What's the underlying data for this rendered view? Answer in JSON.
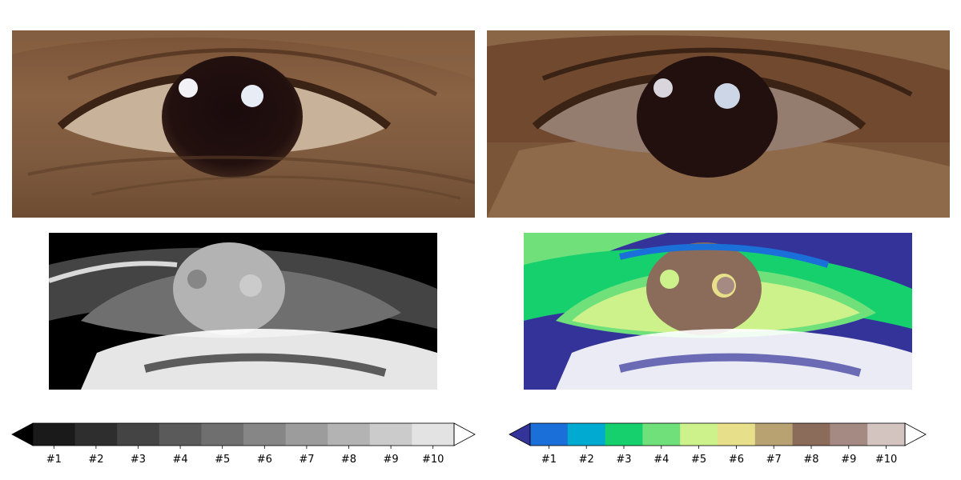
{
  "figure": {
    "panels": [
      {
        "id": "original-photo",
        "description_visible": false
      },
      {
        "id": "quantized-photo"
      },
      {
        "id": "grayscale-class-map"
      },
      {
        "id": "terrain-class-map"
      }
    ]
  },
  "colorbars": [
    {
      "id": "gray-colorbar",
      "labels": [
        "#1",
        "#2",
        "#3",
        "#4",
        "#5",
        "#6",
        "#7",
        "#8",
        "#9",
        "#10"
      ],
      "under_color": "#000000",
      "over_color": "#ffffff",
      "colors": [
        "#1a1a1a",
        "#2e2e2e",
        "#444444",
        "#5a5a5a",
        "#6f6f6f",
        "#868686",
        "#9c9c9c",
        "#b3b3b3",
        "#cbcbcb",
        "#e3e3e3"
      ]
    },
    {
      "id": "terrain-colorbar",
      "labels": [
        "#1",
        "#2",
        "#3",
        "#4",
        "#5",
        "#6",
        "#7",
        "#8",
        "#9",
        "#10"
      ],
      "under_color": "#33339a",
      "over_color": "#ffffff",
      "colors": [
        "#1a6fd8",
        "#00aad0",
        "#16d06e",
        "#6fe07a",
        "#cdf28c",
        "#e8df8a",
        "#b9a272",
        "#8b6c5a",
        "#a48a82",
        "#d3c4c0"
      ]
    }
  ]
}
